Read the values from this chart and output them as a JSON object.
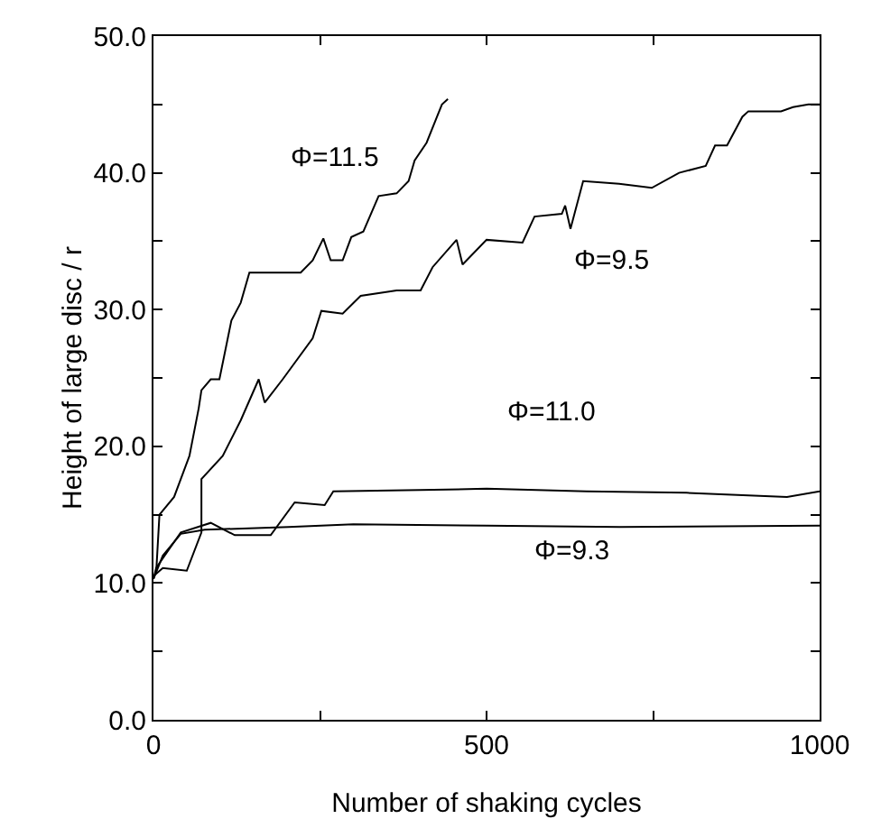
{
  "chart_data": {
    "type": "line",
    "xlabel": "Number of shaking cycles",
    "ylabel": "Height of large disc / r",
    "xlim": [
      0,
      1000
    ],
    "xticks": [
      0,
      {
        "value": 250,
        "label": null
      },
      500,
      {
        "value": 750,
        "label": null
      },
      1000
    ],
    "ylim": [
      0,
      50
    ],
    "yticks": [
      {
        "value": 0,
        "label": "0.0"
      },
      {
        "value": 5,
        "label": null
      },
      {
        "value": 10,
        "label": "10.0"
      },
      {
        "value": 15,
        "label": null
      },
      {
        "value": 20,
        "label": "20.0"
      },
      {
        "value": 25,
        "label": null
      },
      {
        "value": 30,
        "label": "30.0"
      },
      {
        "value": 35,
        "label": null
      },
      {
        "value": 40,
        "label": "40.0"
      },
      {
        "value": 45,
        "label": null
      },
      {
        "value": 50,
        "label": "50.0"
      }
    ],
    "grid": false,
    "legend": false,
    "marker": "none",
    "line_style": "solid",
    "series": [
      {
        "name": "Φ=11.5",
        "color": "#000000",
        "x": [
          0,
          4,
          9,
          31,
          54,
          68,
          72,
          86,
          99,
          117,
          131,
          144,
          185,
          221,
          239,
          255,
          266,
          284,
          297,
          315,
          338,
          365,
          383,
          392,
          410,
          424,
          433,
          442
        ],
        "values": [
          10.5,
          10.7,
          15.0,
          16.3,
          19.3,
          22.8,
          24.1,
          24.9,
          24.9,
          29.2,
          30.5,
          32.7,
          32.7,
          32.7,
          33.6,
          35.2,
          33.6,
          33.6,
          35.3,
          35.7,
          38.3,
          38.5,
          39.4,
          40.9,
          42.2,
          43.9,
          45.0,
          45.4
        ]
      },
      {
        "name": "Φ=9.5",
        "color": "#000000",
        "x": [
          0,
          14,
          50,
          72,
          72,
          104,
          131,
          158,
          167,
          194,
          239,
          252,
          284,
          311,
          365,
          401,
          419,
          455,
          464,
          500,
          554,
          572,
          613,
          618,
          626,
          645,
          699,
          748,
          789,
          829,
          843,
          861,
          884,
          893,
          942,
          960,
          983,
          1000
        ],
        "values": [
          10.5,
          11.1,
          10.9,
          13.7,
          17.6,
          19.3,
          21.9,
          24.9,
          23.2,
          24.9,
          27.9,
          29.9,
          29.7,
          31.0,
          31.4,
          31.4,
          33.1,
          35.1,
          33.3,
          35.1,
          34.9,
          36.8,
          37.0,
          37.6,
          35.9,
          39.4,
          39.2,
          38.9,
          40.0,
          40.5,
          42.0,
          42.0,
          44.1,
          44.5,
          44.5,
          44.8,
          45.0,
          45.0
        ]
      },
      {
        "name": "Φ=11.0",
        "color": "#000000",
        "x": [
          0,
          4,
          41,
          86,
          122,
          176,
          212,
          257,
          270,
          400,
          500,
          650,
          800,
          951,
          1000
        ],
        "values": [
          10.3,
          11.1,
          13.7,
          14.4,
          13.5,
          13.5,
          15.9,
          15.7,
          16.7,
          16.8,
          16.9,
          16.7,
          16.6,
          16.3,
          16.7
        ]
      },
      {
        "name": "Φ=9.3",
        "color": "#000000",
        "x": [
          0,
          14,
          41,
          77,
          203,
          300,
          500,
          700,
          1000
        ],
        "values": [
          10.3,
          12.0,
          13.6,
          13.9,
          14.1,
          14.3,
          14.2,
          14.1,
          14.2
        ]
      }
    ]
  }
}
